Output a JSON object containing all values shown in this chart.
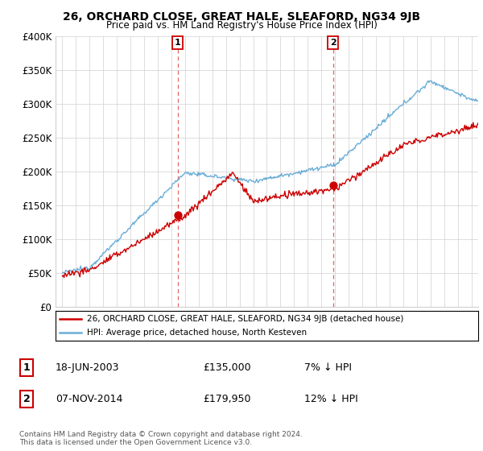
{
  "title": "26, ORCHARD CLOSE, GREAT HALE, SLEAFORD, NG34 9JB",
  "subtitle": "Price paid vs. HM Land Registry's House Price Index (HPI)",
  "ylabel_ticks": [
    "£0",
    "£50K",
    "£100K",
    "£150K",
    "£200K",
    "£250K",
    "£300K",
    "£350K",
    "£400K"
  ],
  "ytick_values": [
    0,
    50000,
    100000,
    150000,
    200000,
    250000,
    300000,
    350000,
    400000
  ],
  "ylim": [
    0,
    400000
  ],
  "hpi_color": "#6baed6",
  "price_color": "#cc0000",
  "vline_color": "#cc0000",
  "legend_label_red": "26, ORCHARD CLOSE, GREAT HALE, SLEAFORD, NG34 9JB (detached house)",
  "legend_label_blue": "HPI: Average price, detached house, North Kesteven",
  "transaction_1_date": "18-JUN-2003",
  "transaction_1_price": "£135,000",
  "transaction_1_note": "7% ↓ HPI",
  "transaction_2_date": "07-NOV-2014",
  "transaction_2_price": "£179,950",
  "transaction_2_note": "12% ↓ HPI",
  "footer": "Contains HM Land Registry data © Crown copyright and database right 2024.\nThis data is licensed under the Open Government Licence v3.0.",
  "transaction_1_year": 2003.46,
  "transaction_2_year": 2014.85,
  "transaction_1_value": 135000,
  "transaction_2_value": 179950,
  "xlim_left": 1994.5,
  "xlim_right": 2025.5
}
